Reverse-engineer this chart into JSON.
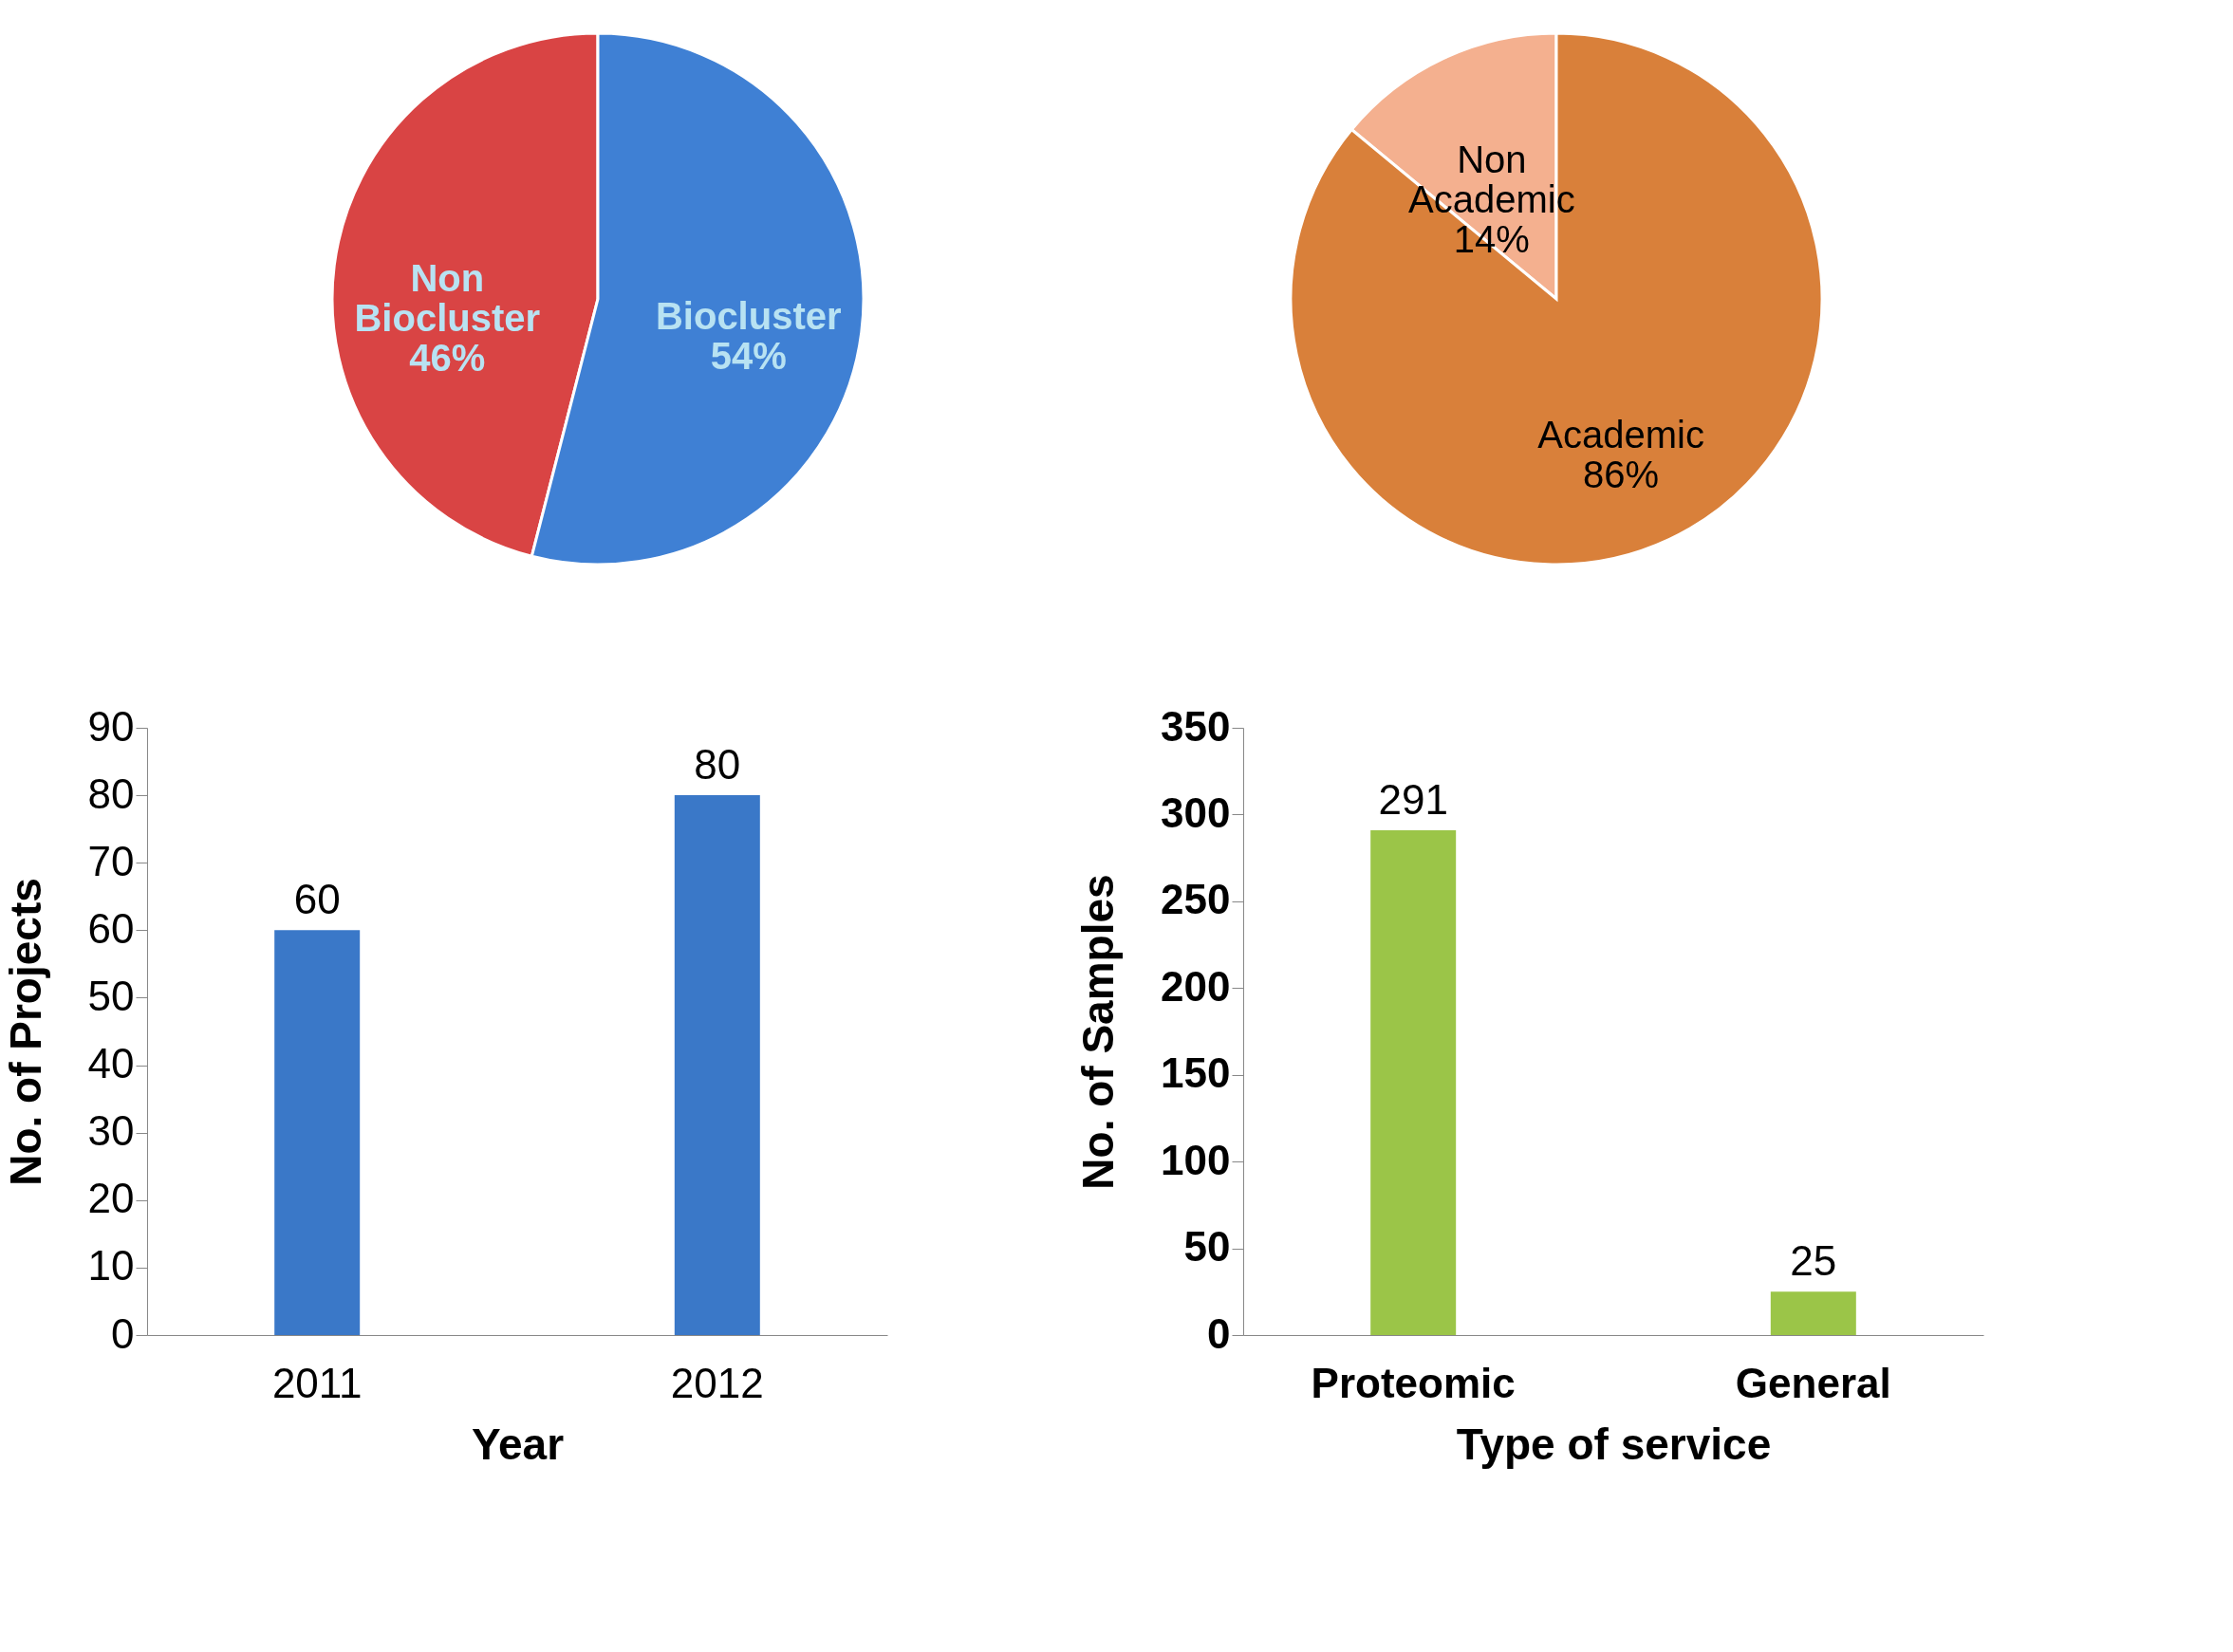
{
  "chart_data": [
    {
      "type": "pie",
      "categories": [
        "Non Biocluster",
        "Biocluster"
      ],
      "values": [
        46,
        54
      ],
      "value_labels": [
        "46%",
        "54%"
      ],
      "colors": [
        "#d94444",
        "#3f80d4"
      ]
    },
    {
      "type": "pie",
      "categories": [
        "Non Academic",
        "Academic"
      ],
      "values": [
        14,
        86
      ],
      "value_labels": [
        "14%",
        "86%"
      ],
      "colors": [
        "#f4b08f",
        "#d9803a"
      ]
    },
    {
      "type": "bar",
      "categories": [
        "2011",
        "2012"
      ],
      "values": [
        60,
        80
      ],
      "color": "#3a78c8",
      "xlabel": "Year",
      "ylabel": "No. of  Projects",
      "ylim": [
        0,
        90
      ],
      "yticks": [
        0,
        10,
        20,
        30,
        40,
        50,
        60,
        70,
        80,
        90
      ],
      "data_labels": true,
      "grid": false
    },
    {
      "type": "bar",
      "categories": [
        "Proteomic",
        "General"
      ],
      "values": [
        291,
        25
      ],
      "color": "#9bc548",
      "xlabel": "Type of service",
      "ylabel": "No. of  Samples",
      "ylim": [
        0,
        350
      ],
      "yticks": [
        0,
        50,
        100,
        150,
        200,
        250,
        300,
        350
      ],
      "data_labels": true,
      "grid": false
    }
  ]
}
